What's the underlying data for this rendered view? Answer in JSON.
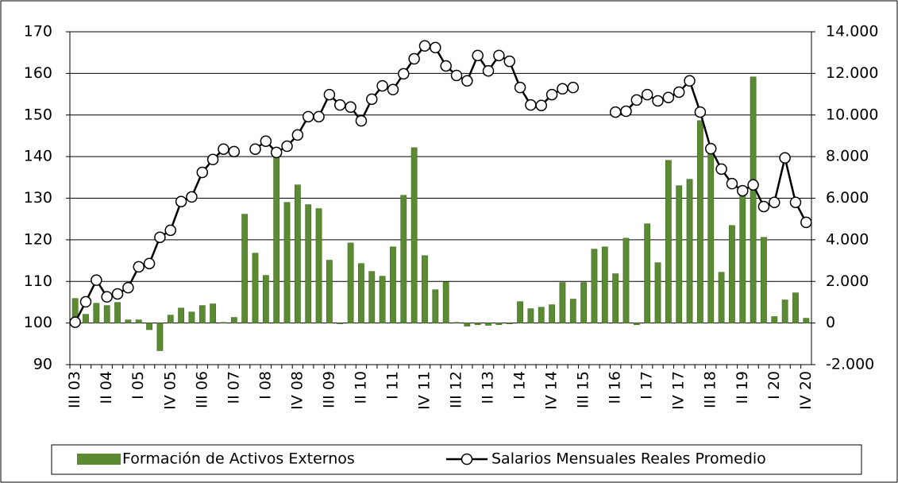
{
  "chart_data": {
    "type": "combo",
    "categories": [
      "III 03",
      null,
      null,
      "II 04",
      null,
      null,
      "I 05",
      null,
      null,
      "IV 05",
      null,
      null,
      "III 06",
      null,
      null,
      "II 07",
      null,
      null,
      "I 08",
      null,
      null,
      "IV 08",
      null,
      null,
      "III 09",
      null,
      null,
      "II 10",
      null,
      null,
      "I 11",
      null,
      null,
      "IV 11",
      null,
      null,
      "III 12",
      null,
      null,
      "II 13",
      null,
      null,
      "I 14",
      null,
      null,
      "IV 14",
      null,
      null,
      "III 15",
      null,
      null,
      "II 16",
      null,
      null,
      "I 17",
      null,
      null,
      "IV 17",
      null,
      null,
      "III 18",
      null,
      null,
      "II 19",
      null,
      null,
      "I 20",
      null,
      null,
      "IV 20"
    ],
    "series": [
      {
        "name": "Formación de Activos Externos",
        "type": "bar",
        "axis": "y2",
        "color": "#5b8a32",
        "values": [
          1180,
          420,
          950,
          840,
          990,
          150,
          150,
          -320,
          -1330,
          380,
          720,
          530,
          840,
          920,
          30,
          270,
          5230,
          3360,
          2290,
          8020,
          5800,
          6640,
          5690,
          5500,
          3020,
          -40,
          3850,
          2860,
          2480,
          2250,
          3660,
          6140,
          8430,
          3240,
          1600,
          1980,
          30,
          -150,
          -80,
          -110,
          -80,
          -40,
          1030,
          690,
          760,
          880,
          1950,
          1150,
          1950,
          3550,
          3660,
          2370,
          4080,
          -80,
          4770,
          2900,
          7820,
          6600,
          6910,
          9730,
          8130,
          2440,
          4690,
          6340,
          11830,
          4120,
          310,
          1110,
          1450,
          230
        ]
      },
      {
        "name": "Salarios Mensuales Reales Promedio",
        "type": "line",
        "color": "#000000",
        "values": [
          100.2,
          105.1,
          110.3,
          106.3,
          107.0,
          108.5,
          113.5,
          114.3,
          120.6,
          122.3,
          129.2,
          130.3,
          136.2,
          139.3,
          141.8,
          141.2,
          null,
          141.8,
          143.7,
          141.0,
          142.5,
          145.2,
          149.6,
          149.6,
          154.9,
          152.4,
          151.9,
          148.6,
          153.8,
          157.0,
          156.1,
          159.9,
          163.5,
          166.6,
          166.2,
          161.8,
          159.5,
          158.2,
          164.3,
          160.6,
          164.3,
          162.9,
          156.6,
          152.4,
          152.3,
          154.9,
          156.3,
          156.6,
          null,
          null,
          null,
          150.7,
          150.9,
          153.6,
          154.9,
          153.4,
          154.2,
          155.5,
          158.2,
          150.7,
          141.9,
          137.0,
          133.5,
          131.8,
          133.2,
          128.0,
          129.0,
          139.7,
          129.0,
          124.2
        ]
      }
    ],
    "ylim": [
      90,
      170
    ],
    "yticks": [
      90,
      100,
      110,
      120,
      130,
      140,
      150,
      160,
      170
    ],
    "y2lim": [
      -2000,
      14000
    ],
    "y2ticks": [
      {
        "value": -2000,
        "label": "-2.000"
      },
      0,
      {
        "value": 2000,
        "label": "2.000"
      },
      {
        "value": 4000,
        "label": "4.000"
      },
      {
        "value": 6000,
        "label": "6.000"
      },
      {
        "value": 8000,
        "label": "8.000"
      },
      {
        "value": 10000,
        "label": "10.000"
      },
      {
        "value": 12000,
        "label": "12.000"
      },
      {
        "value": 14000,
        "label": "14.000"
      }
    ],
    "grid": true,
    "legend": "bottom"
  }
}
